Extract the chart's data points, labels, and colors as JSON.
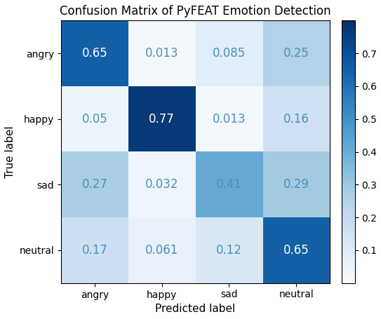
{
  "title": "Confusion Matrix of PyFEAT Emotion Detection",
  "xlabel": "Predicted label",
  "ylabel": "True label",
  "labels": [
    "angry",
    "happy",
    "sad",
    "neutral"
  ],
  "matrix": [
    [
      0.65,
      0.013,
      0.085,
      0.25
    ],
    [
      0.05,
      0.77,
      0.013,
      0.16
    ],
    [
      0.27,
      0.032,
      0.41,
      0.29
    ],
    [
      0.17,
      0.061,
      0.12,
      0.65
    ]
  ],
  "vmin": 0.0,
  "vmax": 0.8,
  "cmap": "Blues",
  "text_color_threshold": 0.45,
  "high_text_color": "white",
  "low_text_color": "#4a90b8",
  "fontsize_values": 12,
  "fontsize_title": 12,
  "fontsize_labels": 11,
  "fontsize_ticks": 10,
  "figsize": [
    5.43,
    4.55
  ],
  "dpi": 100
}
